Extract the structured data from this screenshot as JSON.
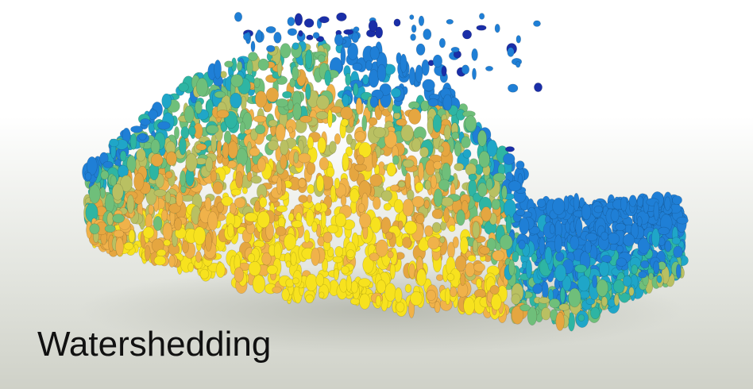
{
  "caption": "Watershedding",
  "colormap": [
    "#1a2ea8",
    "#1f7fd6",
    "#1fa6c8",
    "#2eb5a3",
    "#6fbf7a",
    "#b9c062",
    "#e5a640",
    "#f0b24a",
    "#f7e21e"
  ]
}
